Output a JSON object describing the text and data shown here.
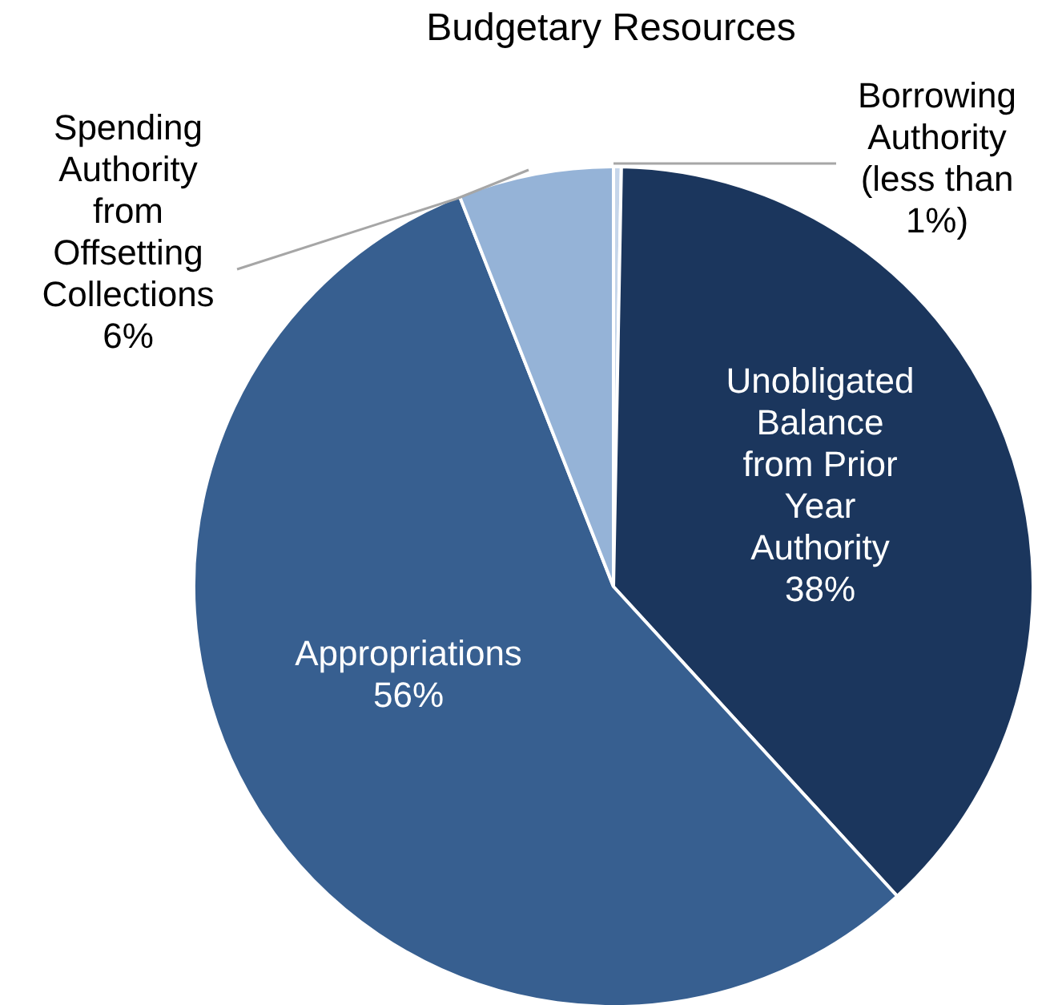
{
  "chart_data": {
    "type": "pie",
    "title": "Budgetary Resources",
    "categories": [
      "Borrowing Authority",
      "Unobligated Balance from Prior Year Authority",
      "Appropriations",
      "Spending Authority from Offsetting Collections"
    ],
    "values": [
      0.3,
      38,
      56,
      6
    ],
    "value_labels": [
      "(less than 1%)",
      "38%",
      "56%",
      "6%"
    ],
    "colors": [
      "#c6d6ea",
      "#1b365d",
      "#375f90",
      "#95b3d7"
    ]
  }
}
